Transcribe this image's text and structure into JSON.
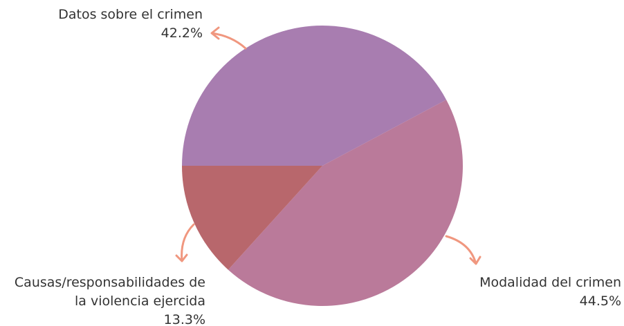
{
  "chart_data": {
    "type": "pie",
    "categories": [
      "Datos sobre el crimen",
      "Modalidad del crimen",
      "Causas/responsabilidades de la violencia ejercida"
    ],
    "values": [
      42.2,
      44.5,
      13.3
    ],
    "value_labels": [
      "42.2%",
      "44.5%",
      "13.3%"
    ],
    "colors": [
      "#a87db0",
      "#ba7a9a",
      "#b8676c"
    ]
  }
}
